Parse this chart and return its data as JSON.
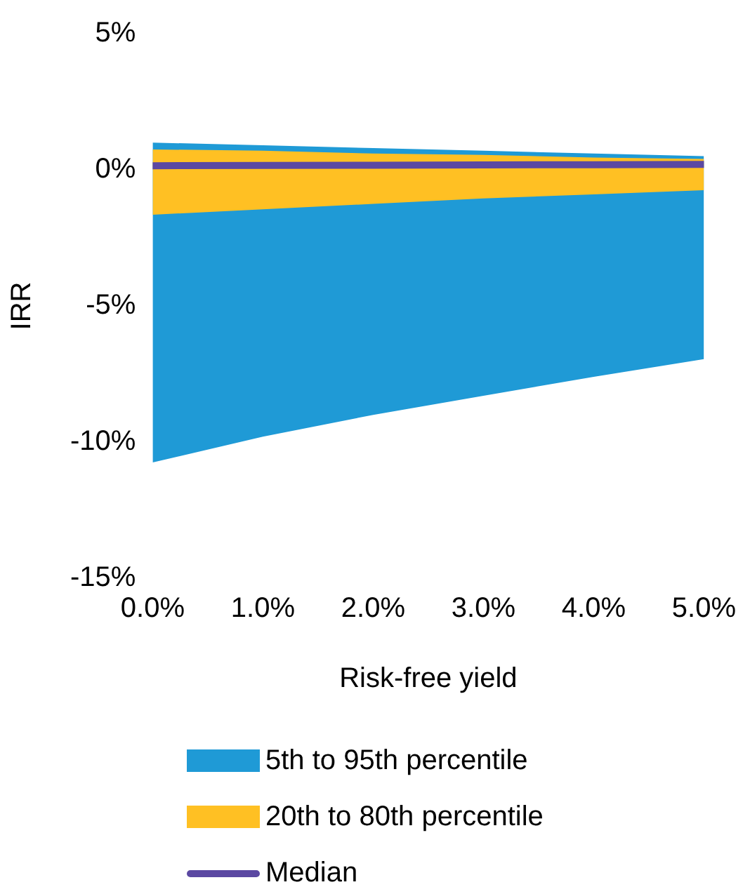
{
  "chart_data": {
    "type": "area",
    "xlabel": "Risk-free yield",
    "ylabel": "IRR",
    "x": [
      0,
      1,
      2,
      3,
      4,
      5
    ],
    "series": [
      {
        "name": "5th to 95th percentile",
        "type": "area",
        "color": "#1f9ad6",
        "values": [
          null,
          null,
          null,
          null,
          null,
          null
        ],
        "lower": [
          -10.75,
          -9.8,
          -9.0,
          -8.3,
          -7.6,
          -6.95
        ],
        "upper": [
          1.0,
          0.9,
          0.8,
          0.7,
          0.6,
          0.5
        ]
      },
      {
        "name": "20th to 80th percentile",
        "type": "area",
        "color": "#ffc023",
        "values": [
          null,
          null,
          null,
          null,
          null,
          null
        ],
        "lower": [
          -1.65,
          -1.45,
          -1.25,
          -1.05,
          -0.9,
          -0.75
        ],
        "upper": [
          0.75,
          0.7,
          0.6,
          0.55,
          0.45,
          0.4
        ]
      },
      {
        "name": "Median",
        "type": "line",
        "color": "#5b48a2",
        "values": [
          0.15,
          0.16,
          0.17,
          0.18,
          0.19,
          0.2
        ]
      }
    ],
    "xlim": [
      0,
      5
    ],
    "xticks": [
      {
        "value": 0,
        "label": "0.0%"
      },
      {
        "value": 1,
        "label": "1.0%"
      },
      {
        "value": 2,
        "label": "2.0%"
      },
      {
        "value": 3,
        "label": "3.0%"
      },
      {
        "value": 4,
        "label": "4.0%"
      },
      {
        "value": 5,
        "label": "5.0%"
      }
    ],
    "ylim": [
      -15,
      5
    ],
    "yticks": [
      {
        "value": -15,
        "label": "-15%"
      },
      {
        "value": -10,
        "label": "-10%"
      },
      {
        "value": -5,
        "label": "-5%"
      },
      {
        "value": 0,
        "label": "0%"
      },
      {
        "value": 5,
        "label": "5%"
      }
    ],
    "grid": false,
    "legend": "bottom"
  }
}
